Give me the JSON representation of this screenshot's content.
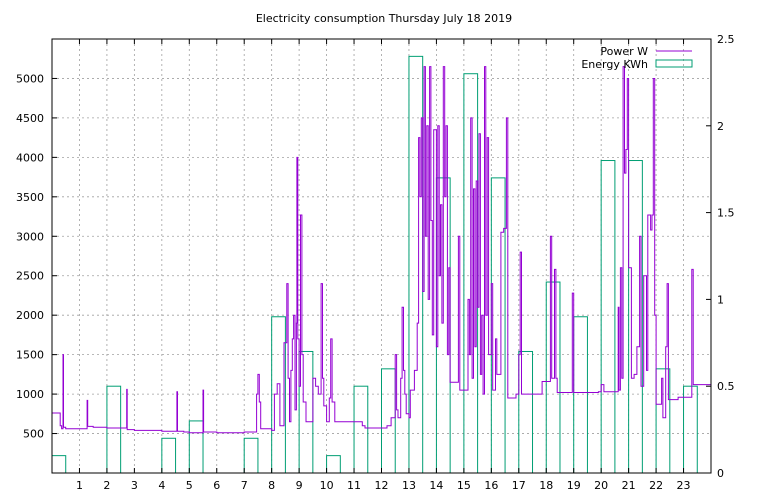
{
  "chart_data": {
    "type": "bar",
    "title": "Electricity consumption Thursday July 18 2019",
    "x_ticks": [
      "1",
      "2",
      "3",
      "4",
      "5",
      "6",
      "7",
      "8",
      "9",
      "10",
      "11",
      "12",
      "13",
      "14",
      "15",
      "16",
      "17",
      "18",
      "19",
      "20",
      "21",
      "22",
      "23"
    ],
    "xlim": [
      0,
      24
    ],
    "y_left": {
      "ylim": [
        0,
        5500
      ],
      "ticks": [
        500,
        1000,
        1500,
        2000,
        2500,
        3000,
        3500,
        4000,
        4500,
        5000
      ]
    },
    "y_right": {
      "ylim": [
        0,
        2.5
      ],
      "ticks": [
        "0",
        "0.5",
        "1",
        "1.5",
        "2",
        "2.5"
      ]
    },
    "grid": true,
    "legend_position": "top-right",
    "series": [
      {
        "name": "Power W",
        "color": "#9400d3",
        "axis": "left",
        "points": [
          [
            0.0,
            760
          ],
          [
            0.25,
            760
          ],
          [
            0.3,
            600
          ],
          [
            0.35,
            560
          ],
          [
            0.4,
            1500
          ],
          [
            0.42,
            580
          ],
          [
            0.5,
            560
          ],
          [
            1.0,
            560
          ],
          [
            1.25,
            560
          ],
          [
            1.28,
            920
          ],
          [
            1.3,
            590
          ],
          [
            1.5,
            580
          ],
          [
            1.9,
            580
          ],
          [
            2.0,
            570
          ],
          [
            2.5,
            570
          ],
          [
            2.7,
            570
          ],
          [
            2.72,
            1060
          ],
          [
            2.74,
            550
          ],
          [
            3.0,
            540
          ],
          [
            3.5,
            540
          ],
          [
            4.0,
            530
          ],
          [
            4.5,
            530
          ],
          [
            4.55,
            1030
          ],
          [
            4.57,
            530
          ],
          [
            4.8,
            520
          ],
          [
            5.0,
            510
          ],
          [
            5.5,
            510
          ],
          [
            5.5,
            1050
          ],
          [
            5.52,
            520
          ],
          [
            6.0,
            510
          ],
          [
            6.5,
            510
          ],
          [
            7.0,
            520
          ],
          [
            7.4,
            520
          ],
          [
            7.45,
            1000
          ],
          [
            7.5,
            1250
          ],
          [
            7.55,
            900
          ],
          [
            7.6,
            560
          ],
          [
            7.8,
            560
          ],
          [
            8.0,
            540
          ],
          [
            8.1,
            1000
          ],
          [
            8.2,
            1130
          ],
          [
            8.3,
            600
          ],
          [
            8.45,
            1650
          ],
          [
            8.55,
            2400
          ],
          [
            8.6,
            1200
          ],
          [
            8.65,
            650
          ],
          [
            8.7,
            1300
          ],
          [
            8.75,
            1700
          ],
          [
            8.8,
            2000
          ],
          [
            8.85,
            800
          ],
          [
            8.9,
            1900
          ],
          [
            8.92,
            4000
          ],
          [
            8.95,
            1700
          ],
          [
            9.0,
            1100
          ],
          [
            9.05,
            3270
          ],
          [
            9.1,
            1500
          ],
          [
            9.15,
            900
          ],
          [
            9.25,
            650
          ],
          [
            9.4,
            650
          ],
          [
            9.5,
            1200
          ],
          [
            9.6,
            1100
          ],
          [
            9.7,
            1000
          ],
          [
            9.8,
            2400
          ],
          [
            9.85,
            1200
          ],
          [
            9.9,
            850
          ],
          [
            10.0,
            650
          ],
          [
            10.1,
            950
          ],
          [
            10.15,
            1700
          ],
          [
            10.2,
            900
          ],
          [
            10.3,
            650
          ],
          [
            10.5,
            650
          ],
          [
            11.0,
            650
          ],
          [
            11.3,
            600
          ],
          [
            11.4,
            570
          ],
          [
            12.0,
            570
          ],
          [
            12.2,
            600
          ],
          [
            12.35,
            700
          ],
          [
            12.5,
            1500
          ],
          [
            12.55,
            800
          ],
          [
            12.6,
            700
          ],
          [
            12.7,
            1200
          ],
          [
            12.75,
            2100
          ],
          [
            12.8,
            1300
          ],
          [
            12.85,
            1000
          ],
          [
            12.9,
            750
          ],
          [
            13.0,
            700
          ],
          [
            13.05,
            1050
          ],
          [
            13.2,
            1300
          ],
          [
            13.3,
            1900
          ],
          [
            13.35,
            4250
          ],
          [
            13.4,
            3500
          ],
          [
            13.45,
            4500
          ],
          [
            13.5,
            2300
          ],
          [
            13.55,
            5150
          ],
          [
            13.6,
            3000
          ],
          [
            13.65,
            4400
          ],
          [
            13.7,
            2200
          ],
          [
            13.75,
            5150
          ],
          [
            13.8,
            3200
          ],
          [
            13.85,
            1750
          ],
          [
            13.9,
            4350
          ],
          [
            14.0,
            1600
          ],
          [
            14.05,
            4400
          ],
          [
            14.1,
            2500
          ],
          [
            14.15,
            3400
          ],
          [
            14.2,
            1900
          ],
          [
            14.25,
            5150
          ],
          [
            14.3,
            3500
          ],
          [
            14.35,
            4400
          ],
          [
            14.4,
            1500
          ],
          [
            14.45,
            2600
          ],
          [
            14.5,
            1150
          ],
          [
            14.6,
            1150
          ],
          [
            14.8,
            3000
          ],
          [
            14.85,
            1050
          ],
          [
            15.0,
            1050
          ],
          [
            15.15,
            2200
          ],
          [
            15.2,
            1500
          ],
          [
            15.25,
            4500
          ],
          [
            15.3,
            1200
          ],
          [
            15.35,
            3600
          ],
          [
            15.4,
            1600
          ],
          [
            15.45,
            3700
          ],
          [
            15.5,
            2100
          ],
          [
            15.55,
            4300
          ],
          [
            15.6,
            1250
          ],
          [
            15.65,
            2000
          ],
          [
            15.7,
            1000
          ],
          [
            15.75,
            5150
          ],
          [
            15.8,
            2000
          ],
          [
            15.85,
            4250
          ],
          [
            15.9,
            1500
          ],
          [
            16.0,
            2400
          ],
          [
            16.05,
            1050
          ],
          [
            16.15,
            1700
          ],
          [
            16.2,
            1250
          ],
          [
            16.35,
            3050
          ],
          [
            16.45,
            3100
          ],
          [
            16.5,
            3100
          ],
          [
            16.55,
            4500
          ],
          [
            16.6,
            950
          ],
          [
            16.8,
            950
          ],
          [
            16.9,
            1000
          ],
          [
            17.0,
            1500
          ],
          [
            17.05,
            2800
          ],
          [
            17.1,
            1000
          ],
          [
            17.5,
            1000
          ],
          [
            17.8,
            1000
          ],
          [
            17.85,
            1160
          ],
          [
            18.0,
            1160
          ],
          [
            18.1,
            1160
          ],
          [
            18.15,
            3000
          ],
          [
            18.2,
            1200
          ],
          [
            18.3,
            2580
          ],
          [
            18.35,
            1200
          ],
          [
            18.4,
            1020
          ],
          [
            18.8,
            1020
          ],
          [
            18.95,
            2280
          ],
          [
            19.0,
            1020
          ],
          [
            19.5,
            1020
          ],
          [
            19.9,
            1030
          ],
          [
            20.0,
            1120
          ],
          [
            20.1,
            1030
          ],
          [
            20.6,
            1030
          ],
          [
            20.62,
            2100
          ],
          [
            20.65,
            1050
          ],
          [
            20.7,
            2600
          ],
          [
            20.75,
            1200
          ],
          [
            20.8,
            5150
          ],
          [
            20.85,
            3800
          ],
          [
            20.9,
            4100
          ],
          [
            20.95,
            5000
          ],
          [
            21.0,
            2600
          ],
          [
            21.1,
            1200
          ],
          [
            21.2,
            1250
          ],
          [
            21.3,
            1600
          ],
          [
            21.4,
            3000
          ],
          [
            21.45,
            1100
          ],
          [
            21.55,
            2500
          ],
          [
            21.65,
            1300
          ],
          [
            21.7,
            3270
          ],
          [
            21.8,
            3080
          ],
          [
            21.85,
            3270
          ],
          [
            21.9,
            5000
          ],
          [
            21.95,
            2000
          ],
          [
            22.0,
            870
          ],
          [
            22.1,
            870
          ],
          [
            22.2,
            1200
          ],
          [
            22.25,
            700
          ],
          [
            22.35,
            1600
          ],
          [
            22.4,
            2400
          ],
          [
            22.45,
            930
          ],
          [
            22.6,
            930
          ],
          [
            22.8,
            960
          ],
          [
            23.2,
            960
          ],
          [
            23.3,
            2580
          ],
          [
            23.35,
            1120
          ],
          [
            23.5,
            1120
          ],
          [
            24.0,
            1080
          ]
        ]
      },
      {
        "name": "Energy KWh",
        "color": "#009e73",
        "axis": "right",
        "values": [
          0.1,
          0,
          0.5,
          0,
          0.2,
          0.3,
          0,
          0.2,
          0.9,
          0.7,
          0.1,
          0.5,
          0.6,
          2.4,
          1.7,
          2.3,
          1.7,
          0.7,
          1.1,
          0.9,
          1.8,
          1.8,
          0.6,
          0.5
        ]
      }
    ]
  }
}
